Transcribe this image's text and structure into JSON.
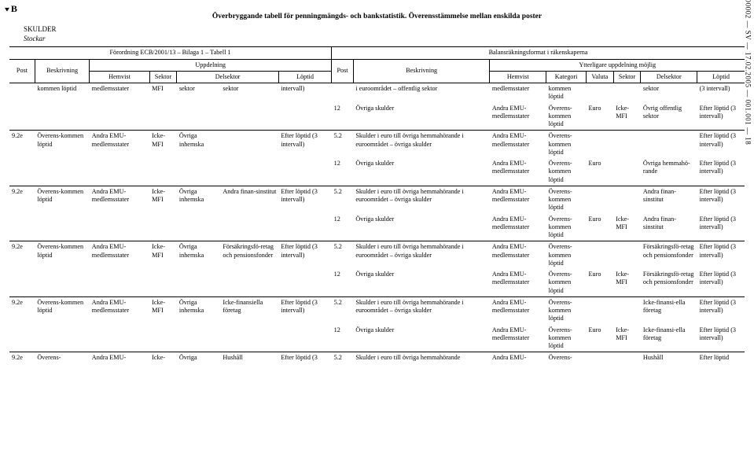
{
  "page": {
    "cornerLetter": "B",
    "sideRef": "2003O0002 — SV — 17.02.2005 — 001.001 — 18"
  },
  "title": "Överbryggande tabell för penningmängds- och bankstatistik. Överensstämmelse mellan enskilda poster",
  "section": {
    "line1": "SKULDER",
    "line2": "Stockar"
  },
  "regulation": {
    "left": "Förordning ECB/2001/13 – Bilaga 1 – Tabell 1",
    "right": "Balansräkningsformat i räkenskaperna"
  },
  "headers": {
    "post": "Post",
    "beskrivning": "Beskrivning",
    "uppdelning": "Uppdelning",
    "hemvist": "Hemvist",
    "sektor": "Sektor",
    "delsektor": "Delsektor",
    "loptid": "Löptid",
    "ytterligare": "Ytterligare uppdelning möjlig",
    "kategori": "Kategori",
    "valuta": "Valuta"
  },
  "rows": [
    {
      "l": {
        "post": "",
        "besk": "kommen löptid",
        "hem": "medlemsstater",
        "sek": "MFI",
        "del": "sektor",
        "del2": "sektor",
        "lop": "intervall)"
      },
      "r1": {
        "post": "",
        "besk": "i euroområdet – offentlig sektor",
        "hem": "medlemsstater",
        "kat": "kommen löptid",
        "val": "",
        "sek": "",
        "del": "sektor",
        "lop": "(3 intervall)"
      },
      "r2": {
        "post": "12",
        "besk": "Övriga skulder",
        "hem": "Andra EMU-medlemsstater",
        "kat": "Överens-kommen löptid",
        "val": "Euro",
        "sek": "Icke-MFI",
        "del": "Övrig offentlig sektor",
        "lop": "Efter löptid (3 intervall)"
      }
    },
    {
      "l": {
        "post": "9.2e",
        "besk": "Överens-kommen löptid",
        "hem": "Andra EMU-medlemsstater",
        "sek": "Icke-MFI",
        "del": "Övriga inhemska",
        "del2": "",
        "lop": "Efter löptid (3 intervall)"
      },
      "r1": {
        "post": "5.2",
        "besk": "Skulder i euro till övriga hemmahörande i euroområdet – övriga skulder",
        "hem": "Andra EMU-medlemsstater",
        "kat": "Överens-kommen löptid",
        "val": "",
        "sek": "",
        "del": "",
        "lop": "Efter löptid (3 intervall)"
      },
      "r2": {
        "post": "12",
        "besk": "Övriga skulder",
        "hem": "Andra EMU-medlemsstater",
        "kat": "Överens-kommen löptid",
        "val": "Euro",
        "sek": "",
        "del": "Övriga hemmahö-rande",
        "lop": "Efter löptid (3 intervall)"
      }
    },
    {
      "l": {
        "post": "9.2e",
        "besk": "Överens-kommen löptid",
        "hem": "Andra EMU-medlemsstater",
        "sek": "Icke-MFI",
        "del": "Övriga inhemska",
        "del2": "Andra finan-sinstitut",
        "lop": "Efter löptid (3 intervall)"
      },
      "r1": {
        "post": "5.2",
        "besk": "Skulder i euro till övriga hemmahörande i euroområdet – övriga skulder",
        "hem": "Andra EMU-medlemsstater",
        "kat": "Överens-kommen löptid",
        "val": "",
        "sek": "",
        "del": "Andra finan-sinstitut",
        "lop": "Efter löptid (3 intervall)"
      },
      "r2": {
        "post": "12",
        "besk": "Övriga skulder",
        "hem": "Andra EMU-medlemsstater",
        "kat": "Överens-kommen löptid",
        "val": "Euro",
        "sek": "Icke-MFI",
        "del": "Andra finan-sinstitut",
        "lop": "Efter löptid (3 intervall)"
      }
    },
    {
      "l": {
        "post": "9.2e",
        "besk": "Överens-kommen löptid",
        "hem": "Andra EMU-medlemsstater",
        "sek": "Icke-MFI",
        "del": "Övriga inhemska",
        "del2": "Försäkringsfö-retag och pensionsfonder",
        "lop": "Efter löptid (3 intervall)"
      },
      "r1": {
        "post": "5.2",
        "besk": "Skulder i euro till övriga hemmahörande i euroområdet – övriga skulder",
        "hem": "Andra EMU-medlemsstater",
        "kat": "Överens-kommen löptid",
        "val": "",
        "sek": "",
        "del": "Försäkringsfö-retag och pensionsfonder",
        "lop": "Efter löptid (3 intervall)"
      },
      "r2": {
        "post": "12",
        "besk": "Övriga skulder",
        "hem": "Andra EMU-medlemsstater",
        "kat": "Överens-kommen löptid",
        "val": "Euro",
        "sek": "Icke-MFI",
        "del": "Försäkringsfö-retag och pensionsfonder",
        "lop": "Efter löptid (3 intervall)"
      }
    },
    {
      "l": {
        "post": "9.2e",
        "besk": "Överens-kommen löptid",
        "hem": "Andra EMU-medlemsstater",
        "sek": "Icke-MFI",
        "del": "Övriga inhemska",
        "del2": "Icke-finansiella företag",
        "lop": "Efter löptid (3 intervall)"
      },
      "r1": {
        "post": "5.2",
        "besk": "Skulder i euro till övriga hemmahörande i euroområdet – övriga skulder",
        "hem": "Andra EMU-medlemsstater",
        "kat": "Överens-kommen löptid",
        "val": "",
        "sek": "",
        "del": "Icke-finansi-ella företag",
        "lop": "Efter löptid (3 intervall)"
      },
      "r2": {
        "post": "12",
        "besk": "Övriga skulder",
        "hem": "Andra EMU-medlemsstater",
        "kat": "Överens-kommen löptid",
        "val": "Euro",
        "sek": "Icke-MFI",
        "del": "Icke-finansi-ella företag",
        "lop": "Efter löptid (3 intervall)"
      }
    },
    {
      "l": {
        "post": "9.2e",
        "besk": "Överens-",
        "hem": "Andra EMU-",
        "sek": "Icke-",
        "del": "Övriga",
        "del2": "Hushåll",
        "lop": "Efter löptid (3"
      },
      "r1": {
        "post": "5.2",
        "besk": "Skulder i euro till övriga hemmahörande",
        "hem": "Andra EMU-",
        "kat": "Överens-",
        "val": "",
        "sek": "",
        "del": "Hushåll",
        "lop": "Efter löptid"
      }
    }
  ]
}
